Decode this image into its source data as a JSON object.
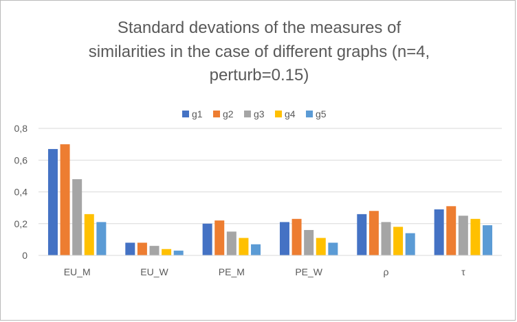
{
  "chart_data": {
    "type": "bar",
    "title_lines": [
      "Standard devations of the measures of",
      "similarities in the case of different  graphs (n=4,",
      "perturb=0.15)"
    ],
    "xlabel": "",
    "ylabel": "",
    "categories": [
      "EU_M",
      "EU_W",
      "PE_M",
      "PE_W",
      "ρ",
      "τ"
    ],
    "series": [
      {
        "name": "g1",
        "color": "#4472c4",
        "values": [
          0.67,
          0.08,
          0.2,
          0.21,
          0.26,
          0.29
        ]
      },
      {
        "name": "g2",
        "color": "#ed7d31",
        "values": [
          0.7,
          0.08,
          0.22,
          0.23,
          0.28,
          0.31
        ]
      },
      {
        "name": "g3",
        "color": "#a5a5a5",
        "values": [
          0.48,
          0.06,
          0.15,
          0.16,
          0.21,
          0.25
        ]
      },
      {
        "name": "g4",
        "color": "#ffc000",
        "values": [
          0.26,
          0.04,
          0.11,
          0.11,
          0.18,
          0.23
        ]
      },
      {
        "name": "g5",
        "color": "#5b9bd5",
        "values": [
          0.21,
          0.03,
          0.07,
          0.08,
          0.14,
          0.19
        ]
      }
    ],
    "ylim": [
      0,
      0.8
    ],
    "yticks": [
      "0",
      "0,2",
      "0,4",
      "0,6",
      "0,8"
    ],
    "grid": true,
    "legend_position": "top"
  }
}
